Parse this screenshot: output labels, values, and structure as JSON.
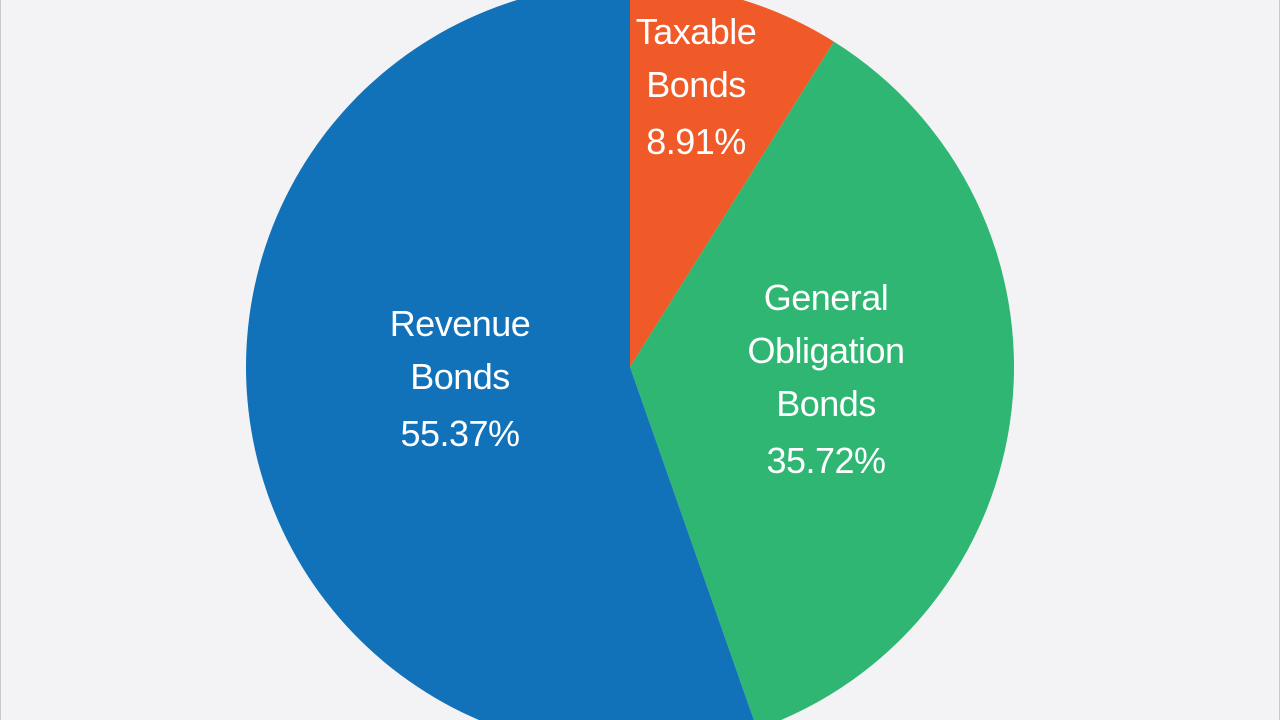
{
  "chart_data": {
    "type": "pie",
    "slices": [
      {
        "name": "Taxable Bonds",
        "label_lines": [
          "Taxable",
          "Bonds"
        ],
        "value": 8.91,
        "value_label": "8.91%",
        "color": "#f05a28"
      },
      {
        "name": "General Obligation Bonds",
        "label_lines": [
          "General",
          "Obligation",
          "Bonds"
        ],
        "value": 35.72,
        "value_label": "35.72%",
        "color": "#2eb672"
      },
      {
        "name": "Revenue Bonds",
        "label_lines": [
          "Revenue",
          "Bonds"
        ],
        "value": 55.37,
        "value_label": "55.37%",
        "color": "#1172ba"
      }
    ],
    "start_angle": "12 o'clock",
    "direction": "clockwise",
    "legend": "none (labels inside slices)"
  },
  "colors": {
    "background": "#f3f3f5",
    "frame_border": "#c9c9cd",
    "label_text": "#ffffff"
  }
}
